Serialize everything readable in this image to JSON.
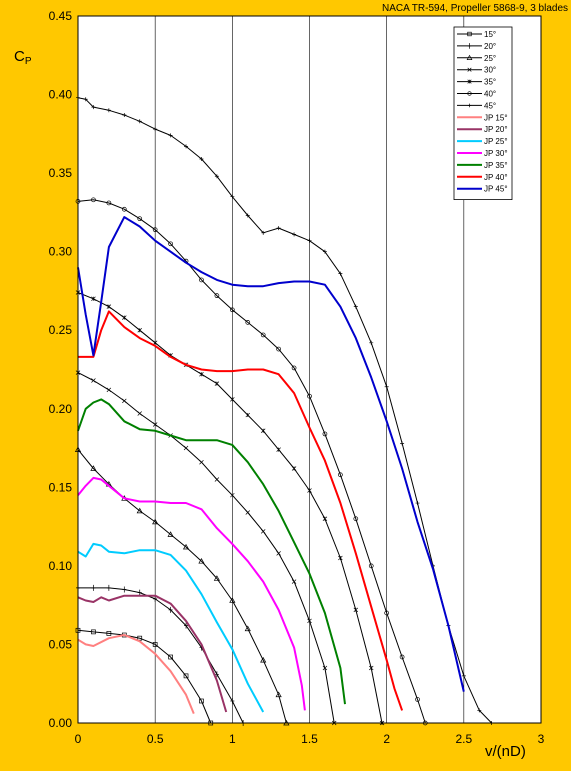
{
  "chart_data": {
    "type": "line",
    "title": "NACA TR-594, Propeller 5868-9, 3 blades",
    "xlabel": "v/(nD)",
    "ylabel": "CP",
    "xlim": [
      0,
      3
    ],
    "ylim": [
      0,
      0.45
    ],
    "xticks": [
      0,
      0.5,
      1,
      1.5,
      2,
      2.5,
      3
    ],
    "xtick_labels": [
      "0",
      "0.5",
      "1",
      "1.5",
      "2",
      "2.5",
      "3"
    ],
    "yticks": [
      0,
      0.05,
      0.1,
      0.15,
      0.2,
      0.25,
      0.3,
      0.35,
      0.4,
      0.45
    ],
    "ytick_labels": [
      "0.00",
      "0.05",
      "0.10",
      "0.15",
      "0.20",
      "0.25",
      "0.30",
      "0.35",
      "0.40",
      "0.45"
    ],
    "grid": "vertical",
    "legend_position": "top-right",
    "series": [
      {
        "name": "15°",
        "color": "#000000",
        "marker": "square",
        "points": [
          [
            0,
            0.059
          ],
          [
            0.1,
            0.058
          ],
          [
            0.2,
            0.057
          ],
          [
            0.3,
            0.056
          ],
          [
            0.4,
            0.054
          ],
          [
            0.5,
            0.05
          ],
          [
            0.6,
            0.042
          ],
          [
            0.7,
            0.03
          ],
          [
            0.8,
            0.014
          ],
          [
            0.86,
            0.0
          ]
        ]
      },
      {
        "name": "20°",
        "color": "#000000",
        "marker": "cross",
        "points": [
          [
            0,
            0.086
          ],
          [
            0.1,
            0.086
          ],
          [
            0.2,
            0.086
          ],
          [
            0.3,
            0.085
          ],
          [
            0.4,
            0.083
          ],
          [
            0.5,
            0.079
          ],
          [
            0.6,
            0.072
          ],
          [
            0.7,
            0.062
          ],
          [
            0.8,
            0.048
          ],
          [
            0.9,
            0.031
          ],
          [
            1.0,
            0.014
          ],
          [
            1.07,
            0.0
          ]
        ]
      },
      {
        "name": "25°",
        "color": "#000000",
        "marker": "triangle",
        "points": [
          [
            0,
            0.174
          ],
          [
            0.1,
            0.162
          ],
          [
            0.2,
            0.152
          ],
          [
            0.3,
            0.143
          ],
          [
            0.4,
            0.135
          ],
          [
            0.5,
            0.128
          ],
          [
            0.6,
            0.12
          ],
          [
            0.7,
            0.112
          ],
          [
            0.8,
            0.103
          ],
          [
            0.9,
            0.092
          ],
          [
            1.0,
            0.078
          ],
          [
            1.1,
            0.06
          ],
          [
            1.2,
            0.04
          ],
          [
            1.3,
            0.018
          ],
          [
            1.35,
            0.0
          ]
        ]
      },
      {
        "name": "30°",
        "color": "#000000",
        "marker": "x",
        "points": [
          [
            0,
            0.223
          ],
          [
            0.1,
            0.218
          ],
          [
            0.2,
            0.212
          ],
          [
            0.3,
            0.205
          ],
          [
            0.4,
            0.197
          ],
          [
            0.5,
            0.19
          ],
          [
            0.6,
            0.183
          ],
          [
            0.7,
            0.175
          ],
          [
            0.8,
            0.166
          ],
          [
            0.9,
            0.155
          ],
          [
            1.0,
            0.145
          ],
          [
            1.1,
            0.134
          ],
          [
            1.2,
            0.122
          ],
          [
            1.3,
            0.108
          ],
          [
            1.4,
            0.09
          ],
          [
            1.5,
            0.065
          ],
          [
            1.6,
            0.035
          ],
          [
            1.66,
            0.0
          ]
        ]
      },
      {
        "name": "35°",
        "color": "#000000",
        "marker": "star",
        "points": [
          [
            0,
            0.274
          ],
          [
            0.1,
            0.27
          ],
          [
            0.2,
            0.265
          ],
          [
            0.3,
            0.258
          ],
          [
            0.4,
            0.25
          ],
          [
            0.5,
            0.242
          ],
          [
            0.6,
            0.234
          ],
          [
            0.7,
            0.228
          ],
          [
            0.8,
            0.222
          ],
          [
            0.9,
            0.216
          ],
          [
            1.0,
            0.206
          ],
          [
            1.1,
            0.196
          ],
          [
            1.2,
            0.186
          ],
          [
            1.3,
            0.174
          ],
          [
            1.4,
            0.162
          ],
          [
            1.5,
            0.148
          ],
          [
            1.6,
            0.13
          ],
          [
            1.7,
            0.105
          ],
          [
            1.8,
            0.072
          ],
          [
            1.9,
            0.035
          ],
          [
            1.97,
            0.0
          ]
        ]
      },
      {
        "name": "40°",
        "color": "#000000",
        "marker": "circle",
        "points": [
          [
            0,
            0.332
          ],
          [
            0.1,
            0.333
          ],
          [
            0.2,
            0.331
          ],
          [
            0.3,
            0.327
          ],
          [
            0.4,
            0.321
          ],
          [
            0.5,
            0.314
          ],
          [
            0.6,
            0.305
          ],
          [
            0.7,
            0.294
          ],
          [
            0.8,
            0.282
          ],
          [
            0.9,
            0.272
          ],
          [
            1.0,
            0.263
          ],
          [
            1.1,
            0.255
          ],
          [
            1.2,
            0.247
          ],
          [
            1.3,
            0.238
          ],
          [
            1.4,
            0.226
          ],
          [
            1.5,
            0.208
          ],
          [
            1.6,
            0.184
          ],
          [
            1.7,
            0.158
          ],
          [
            1.8,
            0.13
          ],
          [
            1.9,
            0.1
          ],
          [
            2.0,
            0.07
          ],
          [
            2.1,
            0.042
          ],
          [
            2.2,
            0.015
          ],
          [
            2.25,
            0.0
          ]
        ]
      },
      {
        "name": "45°",
        "color": "#000000",
        "marker": "plus",
        "points": [
          [
            0,
            0.398
          ],
          [
            0.05,
            0.397
          ],
          [
            0.1,
            0.392
          ],
          [
            0.2,
            0.39
          ],
          [
            0.3,
            0.387
          ],
          [
            0.4,
            0.383
          ],
          [
            0.5,
            0.378
          ],
          [
            0.6,
            0.374
          ],
          [
            0.7,
            0.367
          ],
          [
            0.8,
            0.359
          ],
          [
            0.9,
            0.348
          ],
          [
            1.0,
            0.335
          ],
          [
            1.1,
            0.323
          ],
          [
            1.2,
            0.312
          ],
          [
            1.3,
            0.315
          ],
          [
            1.4,
            0.311
          ],
          [
            1.5,
            0.307
          ],
          [
            1.6,
            0.3
          ],
          [
            1.7,
            0.286
          ],
          [
            1.8,
            0.265
          ],
          [
            1.9,
            0.242
          ],
          [
            2.0,
            0.214
          ],
          [
            2.1,
            0.178
          ],
          [
            2.2,
            0.14
          ],
          [
            2.3,
            0.1
          ],
          [
            2.4,
            0.062
          ],
          [
            2.5,
            0.03
          ],
          [
            2.6,
            0.008
          ],
          [
            2.68,
            0.0
          ]
        ]
      },
      {
        "name": "JP 15°",
        "color": "#FF8080",
        "marker": "none",
        "points": [
          [
            0,
            0.053
          ],
          [
            0.05,
            0.05
          ],
          [
            0.1,
            0.049
          ],
          [
            0.2,
            0.054
          ],
          [
            0.3,
            0.056
          ],
          [
            0.4,
            0.052
          ],
          [
            0.5,
            0.044
          ],
          [
            0.6,
            0.033
          ],
          [
            0.7,
            0.018
          ],
          [
            0.75,
            0.006
          ]
        ]
      },
      {
        "name": "JP 20°",
        "color": "#993366",
        "marker": "none",
        "points": [
          [
            0,
            0.08
          ],
          [
            0.05,
            0.078
          ],
          [
            0.1,
            0.077
          ],
          [
            0.15,
            0.08
          ],
          [
            0.2,
            0.078
          ],
          [
            0.3,
            0.081
          ],
          [
            0.5,
            0.081
          ],
          [
            0.6,
            0.076
          ],
          [
            0.7,
            0.065
          ],
          [
            0.8,
            0.05
          ],
          [
            0.9,
            0.027
          ],
          [
            0.96,
            0.007
          ]
        ]
      },
      {
        "name": "JP 25°",
        "color": "#00CCFF",
        "marker": "none",
        "points": [
          [
            0,
            0.109
          ],
          [
            0.05,
            0.106
          ],
          [
            0.1,
            0.114
          ],
          [
            0.15,
            0.113
          ],
          [
            0.2,
            0.109
          ],
          [
            0.3,
            0.108
          ],
          [
            0.4,
            0.11
          ],
          [
            0.5,
            0.11
          ],
          [
            0.6,
            0.107
          ],
          [
            0.7,
            0.097
          ],
          [
            0.8,
            0.082
          ],
          [
            0.9,
            0.064
          ],
          [
            1.0,
            0.047
          ],
          [
            1.1,
            0.025
          ],
          [
            1.2,
            0.007
          ]
        ]
      },
      {
        "name": "JP 30°",
        "color": "#FF00FF",
        "marker": "none",
        "points": [
          [
            0,
            0.145
          ],
          [
            0.05,
            0.151
          ],
          [
            0.1,
            0.156
          ],
          [
            0.15,
            0.155
          ],
          [
            0.2,
            0.151
          ],
          [
            0.3,
            0.143
          ],
          [
            0.4,
            0.141
          ],
          [
            0.5,
            0.141
          ],
          [
            0.6,
            0.14
          ],
          [
            0.7,
            0.14
          ],
          [
            0.8,
            0.136
          ],
          [
            0.9,
            0.124
          ],
          [
            1.0,
            0.114
          ],
          [
            1.1,
            0.103
          ],
          [
            1.2,
            0.09
          ],
          [
            1.3,
            0.072
          ],
          [
            1.4,
            0.048
          ],
          [
            1.45,
            0.024
          ],
          [
            1.47,
            0.008
          ]
        ]
      },
      {
        "name": "JP 35°",
        "color": "#008000",
        "marker": "none",
        "points": [
          [
            0,
            0.186
          ],
          [
            0.05,
            0.2
          ],
          [
            0.1,
            0.204
          ],
          [
            0.15,
            0.206
          ],
          [
            0.2,
            0.203
          ],
          [
            0.3,
            0.192
          ],
          [
            0.4,
            0.187
          ],
          [
            0.5,
            0.186
          ],
          [
            0.6,
            0.183
          ],
          [
            0.7,
            0.18
          ],
          [
            0.8,
            0.18
          ],
          [
            0.9,
            0.18
          ],
          [
            1.0,
            0.177
          ],
          [
            1.1,
            0.166
          ],
          [
            1.2,
            0.152
          ],
          [
            1.3,
            0.135
          ],
          [
            1.4,
            0.115
          ],
          [
            1.5,
            0.095
          ],
          [
            1.6,
            0.07
          ],
          [
            1.7,
            0.035
          ],
          [
            1.73,
            0.012
          ]
        ]
      },
      {
        "name": "JP 40°",
        "color": "#FF0000",
        "marker": "none",
        "points": [
          [
            0,
            0.233
          ],
          [
            0.05,
            0.233
          ],
          [
            0.1,
            0.233
          ],
          [
            0.15,
            0.25
          ],
          [
            0.2,
            0.262
          ],
          [
            0.3,
            0.252
          ],
          [
            0.4,
            0.245
          ],
          [
            0.5,
            0.24
          ],
          [
            0.6,
            0.233
          ],
          [
            0.7,
            0.228
          ],
          [
            0.8,
            0.225
          ],
          [
            0.9,
            0.224
          ],
          [
            1.0,
            0.224
          ],
          [
            1.1,
            0.225
          ],
          [
            1.2,
            0.225
          ],
          [
            1.3,
            0.222
          ],
          [
            1.4,
            0.21
          ],
          [
            1.5,
            0.188
          ],
          [
            1.6,
            0.167
          ],
          [
            1.7,
            0.14
          ],
          [
            1.8,
            0.108
          ],
          [
            1.9,
            0.074
          ],
          [
            2.0,
            0.04
          ],
          [
            2.05,
            0.022
          ],
          [
            2.1,
            0.008
          ]
        ]
      },
      {
        "name": "JP 45°",
        "color": "#0000CC",
        "marker": "none",
        "points": [
          [
            0,
            0.29
          ],
          [
            0.05,
            0.26
          ],
          [
            0.1,
            0.234
          ],
          [
            0.15,
            0.268
          ],
          [
            0.2,
            0.303
          ],
          [
            0.3,
            0.322
          ],
          [
            0.4,
            0.316
          ],
          [
            0.5,
            0.307
          ],
          [
            0.6,
            0.3
          ],
          [
            0.7,
            0.293
          ],
          [
            0.8,
            0.287
          ],
          [
            0.9,
            0.282
          ],
          [
            1.0,
            0.279
          ],
          [
            1.1,
            0.278
          ],
          [
            1.2,
            0.278
          ],
          [
            1.3,
            0.28
          ],
          [
            1.4,
            0.281
          ],
          [
            1.5,
            0.281
          ],
          [
            1.6,
            0.279
          ],
          [
            1.7,
            0.265
          ],
          [
            1.8,
            0.245
          ],
          [
            1.9,
            0.22
          ],
          [
            2.0,
            0.192
          ],
          [
            2.1,
            0.162
          ],
          [
            2.2,
            0.128
          ],
          [
            2.3,
            0.098
          ],
          [
            2.4,
            0.062
          ],
          [
            2.5,
            0.02
          ]
        ]
      }
    ]
  },
  "colors": {
    "background": "#FFC800",
    "plot_area": "#FFFFFF"
  }
}
